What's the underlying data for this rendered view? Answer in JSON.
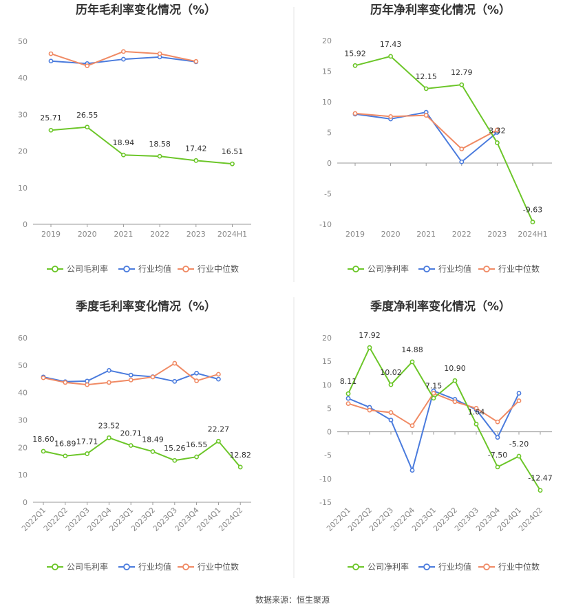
{
  "source_text": "数据来源：恒生聚源",
  "colors": {
    "company": "#6cc629",
    "avg": "#4a7bdd",
    "median": "#f08a64",
    "axis": "#999999",
    "divider": "#e6e6e6"
  },
  "chart_data": [
    {
      "type": "line",
      "title": "历年毛利率变化情况（%）",
      "categories": [
        "2019",
        "2020",
        "2021",
        "2022",
        "2023",
        "2024H1"
      ],
      "ylim": [
        0,
        50
      ],
      "yticks": [
        0,
        10,
        20,
        30,
        40,
        50
      ],
      "grid": false,
      "legend_position": "bottom",
      "series": [
        {
          "name": "公司毛利率",
          "key": "company",
          "values": [
            25.71,
            26.55,
            18.94,
            18.58,
            17.42,
            16.51
          ],
          "labels": [
            "25.71",
            "26.55",
            "18.94",
            "18.58",
            "17.42",
            "16.51"
          ]
        },
        {
          "name": "行业均值",
          "key": "avg",
          "values": [
            44.6,
            43.9,
            45.1,
            45.7,
            44.4,
            null
          ]
        },
        {
          "name": "行业中位数",
          "key": "median",
          "values": [
            46.6,
            43.3,
            47.2,
            46.6,
            44.5,
            null
          ]
        }
      ]
    },
    {
      "type": "line",
      "title": "历年净利率变化情况（%）",
      "categories": [
        "2019",
        "2020",
        "2021",
        "2022",
        "2023",
        "2024H1"
      ],
      "ylim": [
        -10,
        20
      ],
      "yticks": [
        -10,
        -5,
        0,
        5,
        10,
        15,
        20
      ],
      "grid": false,
      "legend_position": "bottom",
      "series": [
        {
          "name": "公司净利率",
          "key": "company",
          "values": [
            15.92,
            17.43,
            12.15,
            12.79,
            3.32,
            -9.63
          ],
          "labels": [
            "15.92",
            "17.43",
            "12.15",
            "12.79",
            "3.32",
            "-9.63"
          ]
        },
        {
          "name": "行业均值",
          "key": "avg",
          "values": [
            8.0,
            7.2,
            8.3,
            0.2,
            5.0,
            null
          ]
        },
        {
          "name": "行业中位数",
          "key": "median",
          "values": [
            8.1,
            7.6,
            7.8,
            2.3,
            5.4,
            null
          ]
        }
      ]
    },
    {
      "type": "line",
      "title": "季度毛利率变化情况（%）",
      "categories": [
        "2022Q1",
        "2022Q2",
        "2022Q3",
        "2022Q4",
        "2023Q1",
        "2023Q2",
        "2023Q3",
        "2023Q4",
        "2024Q1",
        "2024Q2"
      ],
      "ylim": [
        0,
        60
      ],
      "yticks": [
        0,
        10,
        20,
        30,
        40,
        50,
        60
      ],
      "grid": false,
      "legend_position": "bottom",
      "series": [
        {
          "name": "公司毛利率",
          "key": "company",
          "values": [
            18.6,
            16.89,
            17.71,
            23.52,
            20.71,
            18.49,
            15.26,
            16.55,
            22.27,
            12.82
          ],
          "labels": [
            "18.60",
            "16.89",
            "17.71",
            "23.52",
            "20.71",
            "18.49",
            "15.26",
            "16.55",
            "22.27",
            "12.82"
          ]
        },
        {
          "name": "行业均值",
          "key": "avg",
          "values": [
            45.7,
            44.0,
            44.2,
            48.1,
            46.4,
            45.8,
            44.1,
            47.1,
            44.9,
            null
          ]
        },
        {
          "name": "行业中位数",
          "key": "median",
          "values": [
            45.4,
            43.7,
            42.9,
            43.7,
            44.6,
            45.7,
            50.7,
            44.3,
            46.7,
            null
          ]
        }
      ]
    },
    {
      "type": "line",
      "title": "季度净利率变化情况（%）",
      "categories": [
        "2022Q1",
        "2022Q2",
        "2022Q3",
        "2022Q4",
        "2023Q1",
        "2023Q2",
        "2023Q3",
        "2023Q4",
        "2024Q1",
        "2024Q2"
      ],
      "ylim": [
        -15,
        20
      ],
      "yticks": [
        -15,
        -10,
        -5,
        0,
        5,
        10,
        15,
        20
      ],
      "grid": false,
      "legend_position": "bottom",
      "series": [
        {
          "name": "公司净利率",
          "key": "company",
          "values": [
            8.11,
            17.92,
            10.02,
            14.88,
            7.15,
            10.9,
            1.64,
            -7.5,
            -5.2,
            -12.47
          ],
          "labels": [
            "8.11",
            "17.92",
            "10.02",
            "14.88",
            "7.15",
            "10.90",
            "1.64",
            "-7.50",
            "-5.20",
            "-12.47"
          ]
        },
        {
          "name": "行业均值",
          "key": "avg",
          "values": [
            7.1,
            5.2,
            2.5,
            -8.2,
            8.7,
            6.9,
            4.7,
            -1.2,
            8.2,
            null
          ]
        },
        {
          "name": "行业中位数",
          "key": "median",
          "values": [
            6.0,
            4.6,
            4.1,
            1.3,
            8.2,
            6.4,
            5.0,
            2.1,
            6.6,
            null
          ]
        }
      ]
    }
  ]
}
